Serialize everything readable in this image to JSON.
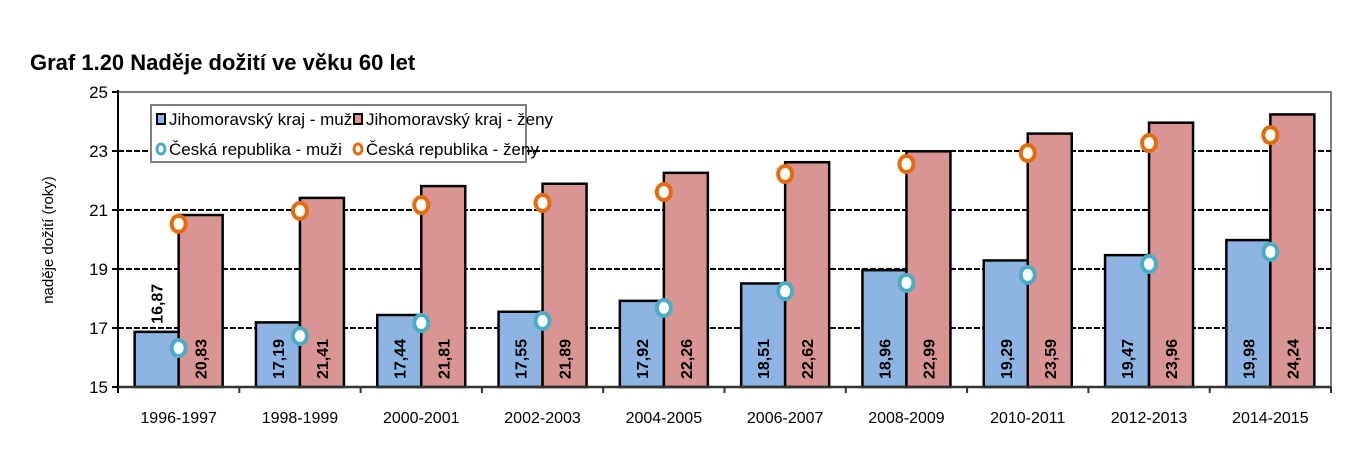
{
  "chart_data": {
    "type": "bar",
    "title": "Graf 1.20 Naděje dožití ve věku 60 let",
    "xlabel": "",
    "ylabel": "naděje dožití (roky)",
    "ylim": [
      15,
      25
    ],
    "yticks": [
      "15",
      "17",
      "19",
      "21",
      "23",
      "25"
    ],
    "grid": true,
    "legend_position": "top-left inside",
    "categories": [
      "1996-1997",
      "1998-1999",
      "2000-2001",
      "2002-2003",
      "2004-2005",
      "2006-2007",
      "2008-2009",
      "2010-2011",
      "2012-2013",
      "2014-2015"
    ],
    "series": [
      {
        "name": "Jihomoravský kraj  - muži",
        "kind": "bar",
        "color": "#8EB4E3",
        "values": [
          16.87,
          17.19,
          17.44,
          17.55,
          17.92,
          18.51,
          18.96,
          19.29,
          19.47,
          19.98
        ],
        "labels": [
          "16,87",
          "17,19",
          "17,44",
          "17,55",
          "17,92",
          "18,51",
          "18,96",
          "19,29",
          "19,47",
          "19,98"
        ]
      },
      {
        "name": "Jihomoravský kraj - ženy",
        "kind": "bar",
        "color": "#D99594",
        "values": [
          20.83,
          21.41,
          21.81,
          21.89,
          22.26,
          22.62,
          22.99,
          23.59,
          23.96,
          24.24
        ],
        "labels": [
          "20,83",
          "21,41",
          "21,81",
          "21,89",
          "22,26",
          "22,62",
          "22,99",
          "23,59",
          "23,96",
          "24,24"
        ]
      },
      {
        "name": "Česká republika - muži",
        "kind": "marker",
        "color": "#4BACC6",
        "values": [
          16.32,
          16.73,
          17.17,
          17.24,
          17.68,
          18.25,
          18.53,
          18.8,
          19.17,
          19.58
        ]
      },
      {
        "name": "Česká republika - ženy",
        "kind": "marker",
        "color": "#E46C0A",
        "values": [
          20.53,
          20.97,
          21.17,
          21.24,
          21.61,
          22.22,
          22.56,
          22.93,
          23.27,
          23.54
        ]
      }
    ]
  }
}
